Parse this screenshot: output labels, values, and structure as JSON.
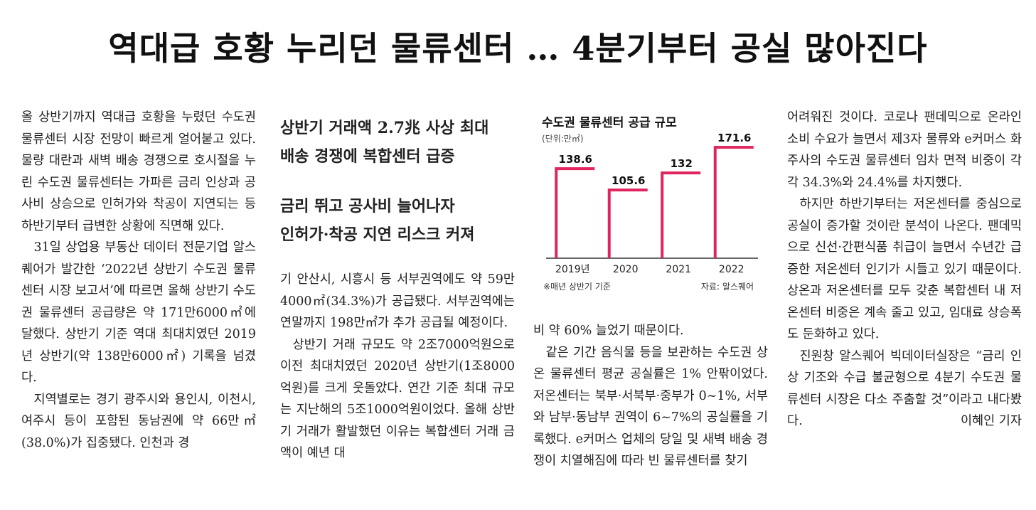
{
  "headline": "역대급 호황 누리던 물류센터 … 4분기부터 공실 많아진다",
  "subheads": [
    "상반기 거래액 2.7兆 사상 최대",
    "배송 경쟁에 복합센터 급증",
    "금리 뛰고 공사비 늘어나자",
    "인허가·착공 지연 리스크 커져"
  ],
  "col1": [
    "올 상반기까지 역대급 호황을 누렸던 수도권 물류센터 시장 전망이 빠르게 얼어붙고 있다. 물량 대란과 새벽 배송 경쟁으로 호시절을 누린 수도권 물류센터는 가파른 금리 인상과 공사비 상승으로 인허가와 착공이 지연되는 등 하반기부터 급변한 상황에 직면해 있다.",
    "31일 상업용 부동산 데이터 전문기업 알스퀘어가 발간한 ‘2022년 상반기 수도권 물류센터 시장 보고서’에 따르면 올해 상반기 수도권 물류센터 공급량은 약 171만6000㎡에 달했다. 상반기 기준 역대 최대치였던 2019년 상반기(약 138만6000㎡) 기록을 넘겼다.",
    "지역별로는 경기 광주시와 용인시, 이천시, 여주시 등이 포함된 동남권에 약 66만㎡(38.0%)가 집중됐다. 인천과 경"
  ],
  "col2": [
    "기 안산시, 시흥시 등 서부권역에도 약 59만4000㎡(34.3%)가 공급됐다. 서부권역에는 연말까지 198만㎡가 추가 공급될 예정이다.",
    "상반기 거래 규모도 약 2조7000억원으로 이전 최대치였던 2020년 상반기(1조8000억원)를 크게 웃돌았다. 연간 기준 최대 규모는 지난해의 5조1000억원이었다. 올해 상반기 거래가 활발했던 이유는 복합센터 거래 금액이 예년 대"
  ],
  "col3": [
    "비 약 60% 늘었기 때문이다.",
    "같은 기간 음식물 등을 보관하는 수도권 상온 물류센터 평균 공실률은 1% 안팎이었다. 저온센터는 북부·서북부·중부가 0~1%, 서부와 남부·동남부 권역이 6~7%의 공실률을 기록했다. e커머스 업체의 당일 및 새벽 배송 경쟁이 치열해짐에 따라 빈 물류센터를 찾기"
  ],
  "col4": [
    "어려워진 것이다. 코로나 팬데믹으로 온라인 소비 수요가 늘면서 제3자 물류와 e커머스 화주사의 수도권 물류센터 임차 면적 비중이 각각 34.3%와 24.4%를 차지했다.",
    "하지만 하반기부터는 저온센터를 중심으로 공실이 증가할 것이란 분석이 나온다. 팬데믹으로 신선·간편식품 취급이 늘면서 수년간 급증한 저온센터 인기가 시들고 있기 때문이다. 상온과 저온센터를 모두 갖춘 복합센터 내 저온센터 비중은 계속 줄고 있고, 임대료 상승폭도 둔화하고 있다.",
    "진원창 알스퀘어 빅데이터실장은 “금리 인상 기조와 수급 불균형으로 4분기 수도권 물류센터 시장은 다소 주춤할 것”이라고 내다봤다."
  ],
  "byline": "이혜인 기자",
  "chart_data": {
    "type": "bar",
    "title": "수도권 물류센터 공급 규모",
    "unit": "(단위:만㎡)",
    "categories": [
      "2019년",
      "2020",
      "2021",
      "2022"
    ],
    "values": [
      138.6,
      105.6,
      132,
      171.6
    ],
    "value_labels": [
      "138.6",
      "105.6",
      "132",
      "171.6"
    ],
    "ylim": [
      0,
      185
    ],
    "note": "※매년 상반기 기준",
    "source": "자료: 알스퀘어",
    "colors": {
      "bar": "#e0245e",
      "axis": "#333333"
    }
  }
}
